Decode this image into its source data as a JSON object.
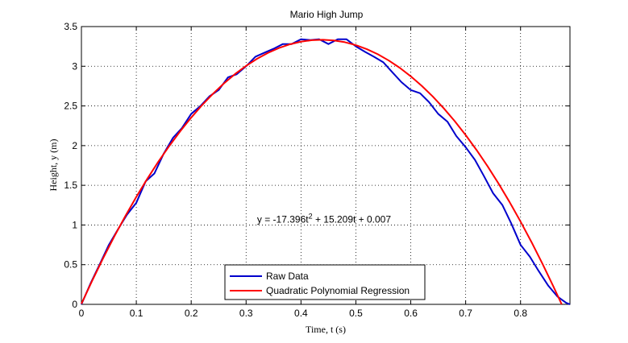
{
  "chart_data": {
    "type": "line",
    "title": "Mario High Jump",
    "xlabel": "Time, t (s)",
    "ylabel": "Height, y (m)",
    "xlim": [
      0,
      0.89
    ],
    "ylim": [
      0,
      3.5
    ],
    "xticks": [
      0,
      0.1,
      0.2,
      0.3,
      0.4,
      0.5,
      0.6,
      0.7,
      0.8
    ],
    "xtick_labels": [
      "0",
      "0.1",
      "0.2",
      "0.3",
      "0.4",
      "0.5",
      "0.6",
      "0.7",
      "0.8"
    ],
    "yticks": [
      0,
      0.5,
      1,
      1.5,
      2,
      2.5,
      3,
      3.5
    ],
    "ytick_labels": [
      "0",
      "0.5",
      "1",
      "1.5",
      "2",
      "2.5",
      "3",
      "3.5"
    ],
    "grid": true,
    "legend_position": "bottom-center",
    "annotation": {
      "parts": [
        "y = -17.396t",
        "2",
        " + 15.209t + 0.007"
      ],
      "x": 0.32,
      "y": 1.03
    },
    "series": [
      {
        "name": "Raw Data",
        "color": "#0000cc",
        "x": [
          0,
          0.017,
          0.033,
          0.05,
          0.067,
          0.083,
          0.1,
          0.117,
          0.133,
          0.15,
          0.167,
          0.183,
          0.2,
          0.217,
          0.233,
          0.25,
          0.267,
          0.283,
          0.3,
          0.317,
          0.333,
          0.35,
          0.367,
          0.383,
          0.4,
          0.417,
          0.433,
          0.45,
          0.467,
          0.483,
          0.5,
          0.517,
          0.533,
          0.55,
          0.567,
          0.583,
          0.6,
          0.617,
          0.633,
          0.65,
          0.667,
          0.683,
          0.7,
          0.717,
          0.733,
          0.75,
          0.767,
          0.783,
          0.8,
          0.817,
          0.833,
          0.85,
          0.867,
          0.883,
          0.89
        ],
        "y": [
          0,
          0.27,
          0.5,
          0.75,
          0.95,
          1.13,
          1.28,
          1.55,
          1.65,
          1.9,
          2.1,
          2.22,
          2.4,
          2.5,
          2.62,
          2.7,
          2.86,
          2.9,
          3.0,
          3.12,
          3.17,
          3.22,
          3.28,
          3.28,
          3.34,
          3.33,
          3.34,
          3.28,
          3.34,
          3.34,
          3.25,
          3.18,
          3.12,
          3.05,
          2.92,
          2.8,
          2.7,
          2.66,
          2.55,
          2.4,
          2.3,
          2.12,
          1.98,
          1.82,
          1.62,
          1.4,
          1.25,
          1.02,
          0.75,
          0.6,
          0.42,
          0.24,
          0.1,
          0.02,
          0.0
        ]
      },
      {
        "name": "Quadratic Polynomial Regression",
        "color": "#ff0000",
        "coefficients": [
          -17.396,
          15.209,
          0.007
        ],
        "x": [
          0,
          0.02,
          0.04,
          0.06,
          0.08,
          0.1,
          0.12,
          0.14,
          0.16,
          0.18,
          0.2,
          0.22,
          0.24,
          0.26,
          0.28,
          0.3,
          0.32,
          0.34,
          0.36,
          0.38,
          0.4,
          0.42,
          0.44,
          0.46,
          0.48,
          0.5,
          0.52,
          0.54,
          0.56,
          0.58,
          0.6,
          0.62,
          0.64,
          0.66,
          0.68,
          0.7,
          0.72,
          0.74,
          0.76,
          0.78,
          0.8,
          0.82,
          0.84,
          0.86,
          0.875
        ],
        "y": [
          0.007,
          0.304,
          0.588,
          0.857,
          1.112,
          1.354,
          1.582,
          1.796,
          1.995,
          2.181,
          2.353,
          2.512,
          2.656,
          2.786,
          2.903,
          3.005,
          3.094,
          3.169,
          3.23,
          3.277,
          3.31,
          3.329,
          3.334,
          3.325,
          3.303,
          3.266,
          3.215,
          3.151,
          3.072,
          2.98,
          2.873,
          2.753,
          2.619,
          2.471,
          2.309,
          2.133,
          1.943,
          1.739,
          1.521,
          1.289,
          1.043,
          0.784,
          0.51,
          0.223,
          0.0
        ]
      }
    ]
  }
}
